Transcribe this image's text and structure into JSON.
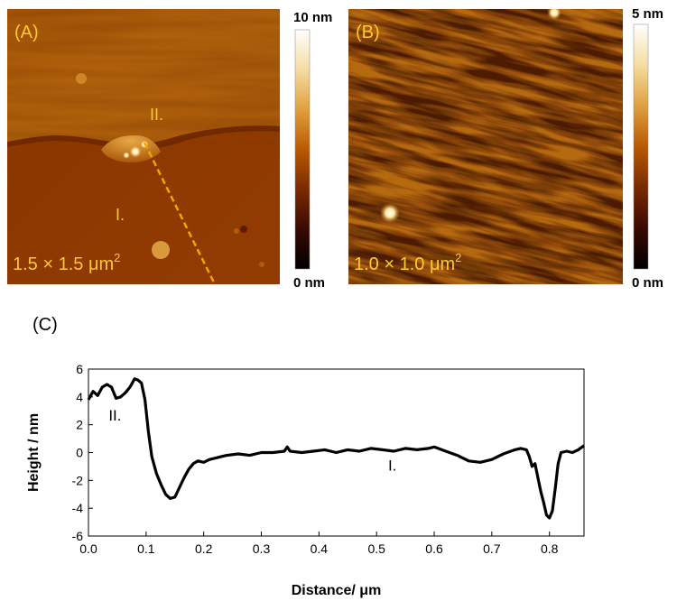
{
  "panel_a": {
    "letter": "(A)",
    "region_upper": "II.",
    "region_lower": "I.",
    "scan_size": "1.5 × 1.5 μm",
    "scan_size_exp": "2",
    "colorbar_max": "10 nm",
    "colorbar_min": "0 nm",
    "colors": {
      "annotation": "#ffc933",
      "profile_line": "#f5a300"
    }
  },
  "panel_b": {
    "letter": "(B)",
    "scan_size": "1.0 × 1.0 μm",
    "scan_size_exp": "2",
    "colorbar_max": "5 nm",
    "colorbar_min": "0 nm"
  },
  "colormap": [
    "#000000",
    "#3a0a00",
    "#7a2a00",
    "#b85a00",
    "#e0a040",
    "#f5dca0",
    "#ffffff"
  ],
  "panel_c": {
    "letter": "(C)"
  },
  "chart_data": {
    "type": "line",
    "xlabel": "Distance/ μm",
    "ylabel": "Height / nm",
    "xlim": [
      0,
      0.86
    ],
    "ylim": [
      -6,
      6
    ],
    "xticks": [
      0.0,
      0.1,
      0.2,
      0.3,
      0.4,
      0.5,
      0.6,
      0.7,
      0.8
    ],
    "xtick_labels": [
      "0.0",
      "0.1",
      "0.2",
      "0.3",
      "0.4",
      "0.5",
      "0.6",
      "0.7",
      "0.8"
    ],
    "yticks": [
      -6,
      -4,
      -2,
      0,
      2,
      4,
      6
    ],
    "ytick_labels": [
      "-6",
      "-4",
      "-2",
      "0",
      "2",
      "4",
      "6"
    ],
    "grid": false,
    "color": "#000000",
    "annotations": [
      {
        "text": "II.",
        "x": 0.035,
        "y": 2.3
      },
      {
        "text": "I.",
        "x": 0.52,
        "y": -1.3
      }
    ],
    "x": [
      0.0,
      0.008,
      0.016,
      0.024,
      0.032,
      0.04,
      0.048,
      0.056,
      0.064,
      0.072,
      0.08,
      0.086,
      0.092,
      0.098,
      0.104,
      0.11,
      0.118,
      0.126,
      0.134,
      0.142,
      0.15,
      0.158,
      0.166,
      0.174,
      0.182,
      0.19,
      0.2,
      0.21,
      0.22,
      0.23,
      0.24,
      0.26,
      0.28,
      0.3,
      0.32,
      0.34,
      0.345,
      0.35,
      0.37,
      0.39,
      0.41,
      0.43,
      0.45,
      0.47,
      0.49,
      0.51,
      0.53,
      0.55,
      0.57,
      0.59,
      0.6,
      0.62,
      0.64,
      0.66,
      0.68,
      0.7,
      0.72,
      0.74,
      0.75,
      0.76,
      0.765,
      0.77,
      0.775,
      0.78,
      0.785,
      0.79,
      0.795,
      0.8,
      0.805,
      0.81,
      0.815,
      0.82,
      0.83,
      0.84,
      0.85,
      0.86
    ],
    "y": [
      3.8,
      4.4,
      4.1,
      4.7,
      4.9,
      4.7,
      3.9,
      4.0,
      4.3,
      4.7,
      5.3,
      5.2,
      5.0,
      3.8,
      1.5,
      -0.3,
      -1.5,
      -2.3,
      -3.0,
      -3.3,
      -3.2,
      -2.5,
      -1.8,
      -1.2,
      -0.8,
      -0.6,
      -0.7,
      -0.5,
      -0.4,
      -0.3,
      -0.2,
      -0.1,
      -0.2,
      0.0,
      0.0,
      0.1,
      0.4,
      0.1,
      0.0,
      0.1,
      0.2,
      0.0,
      0.2,
      0.1,
      0.3,
      0.2,
      0.1,
      0.3,
      0.2,
      0.3,
      0.4,
      0.1,
      -0.2,
      -0.6,
      -0.7,
      -0.5,
      -0.1,
      0.2,
      0.3,
      0.2,
      -0.3,
      -1.0,
      -0.8,
      -1.8,
      -2.8,
      -3.6,
      -4.5,
      -4.7,
      -4.2,
      -2.6,
      -0.8,
      0.0,
      0.1,
      0.0,
      0.2,
      0.5
    ]
  }
}
